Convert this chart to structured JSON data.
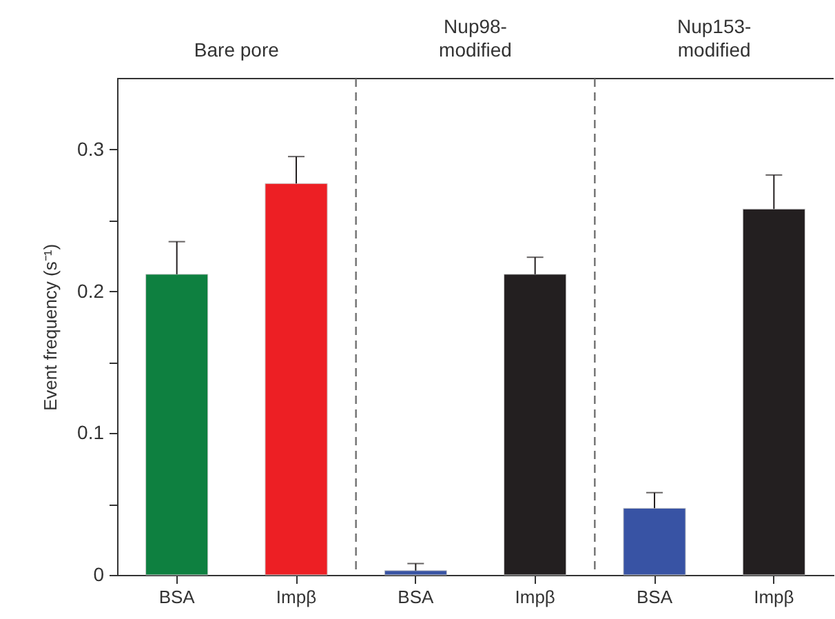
{
  "chart_data": {
    "type": "bar",
    "categories": [
      "BSA",
      "Impβ",
      "BSA",
      "Impβ",
      "BSA",
      "Impβ"
    ],
    "values": [
      0.212,
      0.276,
      0.003,
      0.212,
      0.047,
      0.258
    ],
    "colors": [
      "#0e8040",
      "#ed1f24",
      "#3853a4",
      "#231f20",
      "#3853a4",
      "#231f20"
    ],
    "errors": [
      [
        0.212,
        0.235
      ],
      [
        0.276,
        0.295
      ],
      [
        0.003,
        0.008
      ],
      [
        0.212,
        0.224
      ],
      [
        0.047,
        0.058
      ],
      [
        0.258,
        0.282
      ]
    ],
    "ylabel": "Event frequency (s⁻¹)",
    "ylim": [
      0,
      0.35
    ],
    "yticks": [
      0,
      {
        "value": 0.05,
        "label": null
      },
      0.1,
      {
        "value": 0.15,
        "label": null
      },
      0.2,
      {
        "value": 0.25,
        "label": null
      },
      0.3
    ],
    "annotations": [
      "Bare pore",
      "Nup98-\nmodified",
      "Nup153-\nmodified"
    ],
    "grid": false
  }
}
